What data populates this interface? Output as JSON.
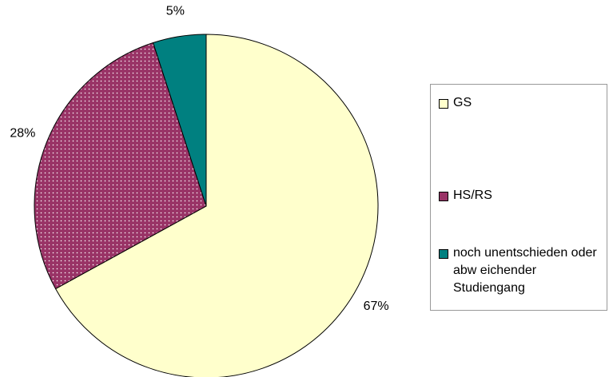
{
  "chart_data": {
    "type": "pie",
    "categories": [
      "GS",
      "HS/RS",
      "noch unentschieden oder abw eichender Studiengang"
    ],
    "values": [
      67,
      28,
      5
    ],
    "value_labels": [
      "67%",
      "28%",
      "5%"
    ],
    "colors": [
      "#ffffcc",
      "#993366",
      "#008080"
    ],
    "legend": "right"
  }
}
